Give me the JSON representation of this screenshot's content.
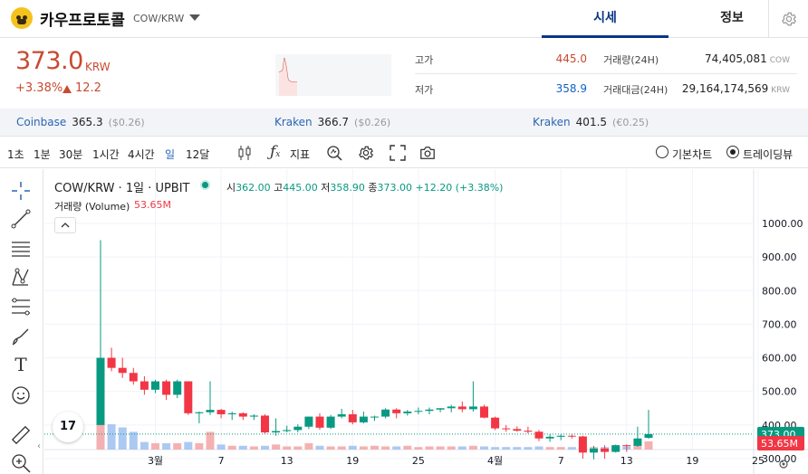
{
  "header": {
    "coin_name": "카우프로토콜",
    "pair": "COW/KRW",
    "tab_sise": "시세",
    "tab_info": "정보"
  },
  "price": {
    "current": "373.0",
    "unit": "KRW",
    "change_pct": "+3.38%",
    "change_val": "12.2"
  },
  "stats": {
    "high_label": "고가",
    "high_value": "445.0",
    "low_label": "저가",
    "low_value": "358.9",
    "volume_label": "거래량(24H)",
    "volume_value": "74,405,081",
    "volume_unit": "COW",
    "amount_label": "거래대금(24H)",
    "amount_value": "29,164,174,569",
    "amount_unit": "KRW"
  },
  "exchanges": [
    {
      "name": "Coinbase",
      "price": "365.3",
      "diff": "($0.26)"
    },
    {
      "name": "Kraken",
      "price": "366.7",
      "diff": "($0.26)"
    },
    {
      "name": "Kraken",
      "price": "401.5",
      "diff": "(€0.25)"
    }
  ],
  "toolbar": {
    "timeframes": [
      "1초",
      "1분",
      "30분",
      "1시간",
      "4시간",
      "일",
      "12달"
    ],
    "selected": "일",
    "indicator_label": "지표",
    "basic_chart": "기본차트",
    "trading_view": "트레이딩뷰"
  },
  "chart": {
    "legend": "COW/KRW · 1일 · UPBIT",
    "ohlc_o_label": "시",
    "ohlc_o": "362.00",
    "ohlc_h_label": "고",
    "ohlc_h": "445.00",
    "ohlc_l_label": "저",
    "ohlc_l": "358.90",
    "ohlc_c_label": "종",
    "ohlc_c": "373.00",
    "ohlc_chg": "+12.20 (+3.38%)",
    "volume_label": "거래량 (Volume)",
    "volume_value": "53.65M",
    "last_price_tag": "373.00",
    "last_volume_tag": "53.65M",
    "logo_text": "17"
  },
  "chart_data": {
    "type": "candlestick",
    "y_ticks": [
      1000,
      900,
      800,
      700,
      600,
      500,
      400,
      300
    ],
    "y_tick_labels": [
      "1000.00",
      "900.00",
      "800.00",
      "700.00",
      "600.00",
      "500.00",
      "400.00",
      "300.00"
    ],
    "x_ticks": [
      {
        "label": "3월",
        "i": 5
      },
      {
        "label": "7",
        "i": 11
      },
      {
        "label": "13",
        "i": 17
      },
      {
        "label": "19",
        "i": 23
      },
      {
        "label": "25",
        "i": 29
      },
      {
        "label": "4월",
        "i": 36
      },
      {
        "label": "7",
        "i": 42
      },
      {
        "label": "13",
        "i": 48
      },
      {
        "label": "19",
        "i": 54
      },
      {
        "label": "25",
        "i": 60
      }
    ],
    "candles": [
      {
        "o": 400,
        "h": 950,
        "l": 400,
        "c": 600
      },
      {
        "o": 600,
        "h": 630,
        "l": 560,
        "c": 570
      },
      {
        "o": 570,
        "h": 600,
        "l": 540,
        "c": 555
      },
      {
        "o": 555,
        "h": 570,
        "l": 520,
        "c": 530
      },
      {
        "o": 530,
        "h": 545,
        "l": 490,
        "c": 505
      },
      {
        "o": 505,
        "h": 535,
        "l": 495,
        "c": 530
      },
      {
        "o": 530,
        "h": 535,
        "l": 475,
        "c": 490
      },
      {
        "o": 490,
        "h": 535,
        "l": 480,
        "c": 530
      },
      {
        "o": 530,
        "h": 530,
        "l": 430,
        "c": 435
      },
      {
        "o": 435,
        "h": 440,
        "l": 405,
        "c": 438
      },
      {
        "o": 438,
        "h": 530,
        "l": 430,
        "c": 445
      },
      {
        "o": 445,
        "h": 448,
        "l": 420,
        "c": 432
      },
      {
        "o": 432,
        "h": 440,
        "l": 415,
        "c": 435
      },
      {
        "o": 435,
        "h": 438,
        "l": 415,
        "c": 425
      },
      {
        "o": 425,
        "h": 432,
        "l": 415,
        "c": 428
      },
      {
        "o": 428,
        "h": 432,
        "l": 375,
        "c": 378
      },
      {
        "o": 378,
        "h": 420,
        "l": 368,
        "c": 382
      },
      {
        "o": 382,
        "h": 398,
        "l": 378,
        "c": 385
      },
      {
        "o": 385,
        "h": 402,
        "l": 378,
        "c": 395
      },
      {
        "o": 395,
        "h": 425,
        "l": 388,
        "c": 425
      },
      {
        "o": 425,
        "h": 435,
        "l": 386,
        "c": 392
      },
      {
        "o": 392,
        "h": 430,
        "l": 388,
        "c": 425
      },
      {
        "o": 425,
        "h": 448,
        "l": 420,
        "c": 432
      },
      {
        "o": 432,
        "h": 445,
        "l": 402,
        "c": 408
      },
      {
        "o": 408,
        "h": 440,
        "l": 405,
        "c": 425
      },
      {
        "o": 425,
        "h": 428,
        "l": 412,
        "c": 425
      },
      {
        "o": 425,
        "h": 450,
        "l": 420,
        "c": 446
      },
      {
        "o": 446,
        "h": 450,
        "l": 420,
        "c": 435
      },
      {
        "o": 435,
        "h": 445,
        "l": 428,
        "c": 440
      },
      {
        "o": 440,
        "h": 452,
        "l": 432,
        "c": 442
      },
      {
        "o": 442,
        "h": 452,
        "l": 432,
        "c": 446
      },
      {
        "o": 446,
        "h": 450,
        "l": 438,
        "c": 450
      },
      {
        "o": 450,
        "h": 460,
        "l": 438,
        "c": 455
      },
      {
        "o": 455,
        "h": 470,
        "l": 438,
        "c": 447
      },
      {
        "o": 447,
        "h": 530,
        "l": 440,
        "c": 455
      },
      {
        "o": 455,
        "h": 460,
        "l": 420,
        "c": 422
      },
      {
        "o": 422,
        "h": 425,
        "l": 385,
        "c": 390
      },
      {
        "o": 390,
        "h": 400,
        "l": 380,
        "c": 388
      },
      {
        "o": 388,
        "h": 396,
        "l": 380,
        "c": 383
      },
      {
        "o": 383,
        "h": 395,
        "l": 375,
        "c": 380
      },
      {
        "o": 380,
        "h": 385,
        "l": 352,
        "c": 360
      },
      {
        "o": 360,
        "h": 372,
        "l": 350,
        "c": 365
      },
      {
        "o": 365,
        "h": 372,
        "l": 355,
        "c": 368
      },
      {
        "o": 368,
        "h": 372,
        "l": 360,
        "c": 366
      },
      {
        "o": 366,
        "h": 368,
        "l": 300,
        "c": 318
      },
      {
        "o": 318,
        "h": 338,
        "l": 298,
        "c": 330
      },
      {
        "o": 330,
        "h": 340,
        "l": 300,
        "c": 320
      },
      {
        "o": 320,
        "h": 342,
        "l": 318,
        "c": 340
      },
      {
        "o": 340,
        "h": 342,
        "l": 320,
        "c": 338
      },
      {
        "o": 338,
        "h": 395,
        "l": 335,
        "c": 360
      },
      {
        "o": 362,
        "h": 445,
        "l": 358.9,
        "c": 373
      }
    ],
    "volumes": [
      100,
      40,
      35,
      28,
      12,
      10,
      10,
      10,
      12,
      10,
      28,
      8,
      6,
      6,
      5,
      6,
      8,
      5,
      5,
      10,
      6,
      5,
      5,
      6,
      5,
      6,
      5,
      5,
      6,
      4,
      5,
      5,
      5,
      5,
      6,
      5,
      4,
      4,
      4,
      4,
      5,
      4,
      4,
      4,
      5,
      4,
      4,
      5,
      5,
      6,
      13
    ]
  }
}
